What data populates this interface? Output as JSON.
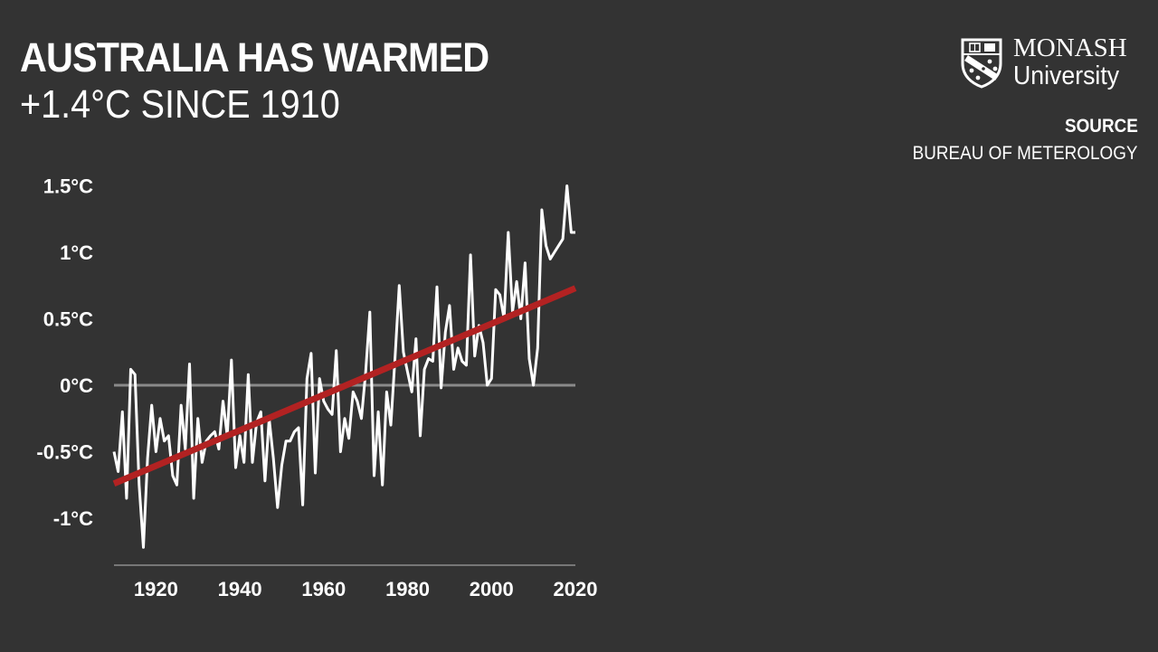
{
  "header": {
    "title": "AUSTRALIA HAS WARMED",
    "subtitle": "+1.4°C SINCE 1910"
  },
  "logo": {
    "line1": "MONASH",
    "line2": "University"
  },
  "source": {
    "label": "SOURCE",
    "value": "BUREAU OF METEROLOGY"
  },
  "colors": {
    "background": "#333333",
    "series": "#ffffff",
    "trend": "#b22222",
    "zero_line": "#8a8a8a",
    "axis": "#777777"
  },
  "chart_data": {
    "type": "line",
    "title": "AUSTRALIA HAS WARMED",
    "subtitle": "+1.4°C SINCE 1910",
    "xlim": [
      1910,
      2020
    ],
    "ylim": [
      -1.3,
      1.5
    ],
    "x_ticks": [
      1920,
      1940,
      1960,
      1980,
      2000,
      2020
    ],
    "y_ticks": [
      {
        "value": 1.5,
        "label": "1.5°C"
      },
      {
        "value": 1.0,
        "label": "1°C"
      },
      {
        "value": 0.5,
        "label": "0.5°C"
      },
      {
        "value": 0.0,
        "label": "0°C"
      },
      {
        "value": -0.5,
        "label": "-0.5°C"
      },
      {
        "value": -1.0,
        "label": "-1°C"
      }
    ],
    "zero_line": true,
    "grid": false,
    "series": [
      {
        "x": [
          1910,
          1911,
          1912,
          1913,
          1914,
          1915,
          1916,
          1917,
          1918,
          1919,
          1920,
          1921,
          1922,
          1923,
          1924,
          1925,
          1926,
          1927,
          1928,
          1929,
          1930,
          1931,
          1932,
          1933,
          1934,
          1935,
          1936,
          1937,
          1938,
          1939,
          1940,
          1941,
          1942,
          1943,
          1944,
          1945,
          1946,
          1947,
          1948,
          1949,
          1950,
          1951,
          1952,
          1953,
          1954,
          1955,
          1956,
          1957,
          1958,
          1959,
          1960,
          1961,
          1962,
          1963,
          1964,
          1965,
          1966,
          1967,
          1968,
          1969,
          1970,
          1971,
          1972,
          1973,
          1974,
          1975,
          1976,
          1977,
          1978,
          1979,
          1980,
          1981,
          1982,
          1983,
          1984,
          1985,
          1986,
          1987,
          1988,
          1989,
          1990,
          1991,
          1992,
          1993,
          1994,
          1995,
          1996,
          1997,
          1998,
          1999,
          2000,
          2001,
          2002,
          2003,
          2004,
          2005,
          2006,
          2007,
          2008,
          2009,
          2010,
          2011,
          2012,
          2013,
          2014,
          2015,
          2016,
          2017,
          2018,
          2019,
          2020
        ],
        "values": [
          -0.5,
          -0.65,
          -0.2,
          -0.85,
          0.12,
          0.08,
          -0.75,
          -1.22,
          -0.55,
          -0.15,
          -0.5,
          -0.25,
          -0.42,
          -0.38,
          -0.68,
          -0.75,
          -0.15,
          -0.48,
          0.16,
          -0.85,
          -0.25,
          -0.58,
          -0.42,
          -0.38,
          -0.35,
          -0.48,
          -0.12,
          -0.38,
          0.19,
          -0.62,
          -0.38,
          -0.58,
          0.08,
          -0.58,
          -0.28,
          -0.2,
          -0.72,
          -0.25,
          -0.55,
          -0.92,
          -0.6,
          -0.42,
          -0.42,
          -0.35,
          -0.32,
          -0.9,
          0.05,
          0.24,
          -0.66,
          0.05,
          -0.12,
          -0.18,
          -0.22,
          0.26,
          -0.5,
          -0.25,
          -0.4,
          -0.05,
          -0.12,
          -0.25,
          0.1,
          0.55,
          -0.68,
          -0.2,
          -0.75,
          -0.05,
          -0.3,
          0.2,
          0.75,
          0.25,
          0.1,
          -0.05,
          0.35,
          -0.38,
          0.12,
          0.2,
          0.18,
          0.74,
          -0.02,
          0.4,
          0.6,
          0.12,
          0.28,
          0.18,
          0.15,
          0.98,
          0.22,
          0.45,
          0.32,
          0.0,
          0.05,
          0.72,
          0.68,
          0.5,
          1.15,
          0.55,
          0.78,
          0.5,
          0.92,
          0.2,
          0.0,
          0.28,
          1.32,
          1.05,
          0.95,
          1.0,
          1.05,
          1.1,
          1.5,
          1.15,
          1.15
        ]
      },
      {
        "x": [
          1910,
          2020
        ],
        "values": [
          -0.74,
          0.73
        ]
      }
    ]
  }
}
